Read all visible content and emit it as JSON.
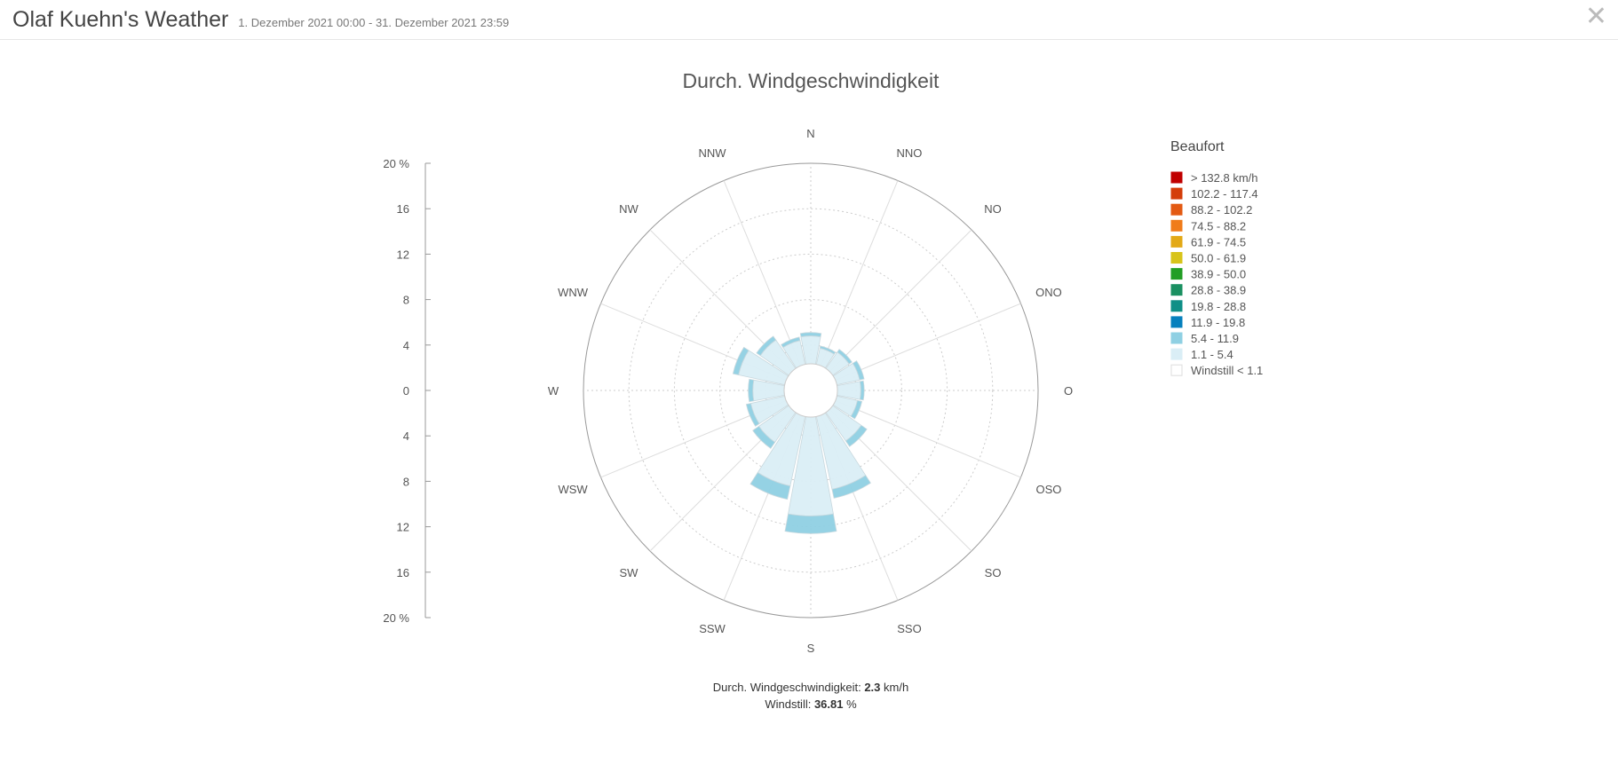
{
  "header": {
    "title": "Olaf Kuehn's Weather",
    "range": "1. Dezember 2021 00:00 - 31. Dezember 2021 23:59",
    "close_icon": "close-icon"
  },
  "chart_data": {
    "type": "windrose",
    "title": "Durch. Windgeschwindigkeit",
    "directions": [
      "N",
      "NNO",
      "NO",
      "ONO",
      "O",
      "OSO",
      "SO",
      "SSO",
      "S",
      "SSW",
      "SW",
      "WSW",
      "W",
      "WNW",
      "NW",
      "NNW"
    ],
    "radial_axis": {
      "min": 0,
      "max": 20,
      "tick_interval": 4,
      "unit": "%",
      "ticks": [
        "20 %",
        "16",
        "12",
        "8",
        "4",
        "0",
        "4",
        "8",
        "12",
        "16",
        "20 %"
      ]
    },
    "grid": true,
    "legend": {
      "title": "Beaufort",
      "placement": "right"
    },
    "series": [
      {
        "name": "1.1 - 5.4",
        "color": "#daeef6",
        "values": [
          4.8,
          3.8,
          4.1,
          4.4,
          4.4,
          4.2,
          5.4,
          8.9,
          11.05,
          8.6,
          5.55,
          5.4,
          5.1,
          6.5,
          5.4,
          4.5
        ]
      },
      {
        "name": "5.4 - 11.9",
        "color": "#8fd0e3",
        "values": [
          0.3,
          0.2,
          0.3,
          0.4,
          0.3,
          0.4,
          0.6,
          0.8,
          1.55,
          1.2,
          0.65,
          0.4,
          0.4,
          0.5,
          0.4,
          0.3
        ]
      }
    ],
    "legend_items": [
      {
        "label": "> 132.8 km/h",
        "color": "#c00000"
      },
      {
        "label": "102.2 - 117.4",
        "color": "#d43d0a"
      },
      {
        "label": "88.2 - 102.2",
        "color": "#e35a13"
      },
      {
        "label": "74.5 - 88.2",
        "color": "#f07c1a"
      },
      {
        "label": "61.9 - 74.5",
        "color": "#e3a916"
      },
      {
        "label": "50.0 - 61.9",
        "color": "#d8c41a"
      },
      {
        "label": "38.9 - 50.0",
        "color": "#239e25"
      },
      {
        "label": "28.8 - 38.9",
        "color": "#1a9061"
      },
      {
        "label": "19.8 - 28.8",
        "color": "#0f8f87"
      },
      {
        "label": "11.9 - 19.8",
        "color": "#0580bd"
      },
      {
        "label": "5.4 - 11.9",
        "color": "#8fd0e3"
      },
      {
        "label": "1.1 - 5.4",
        "color": "#daeef6"
      },
      {
        "label": "Windstill < 1.1",
        "color": "#ffffff"
      }
    ]
  },
  "footer": {
    "avg_label": "Durch. Windgeschwindigkeit: ",
    "avg_value": "2.3",
    "avg_unit": " km/h",
    "calm_label": "Windstill: ",
    "calm_value": "36.81",
    "calm_unit": " %"
  }
}
